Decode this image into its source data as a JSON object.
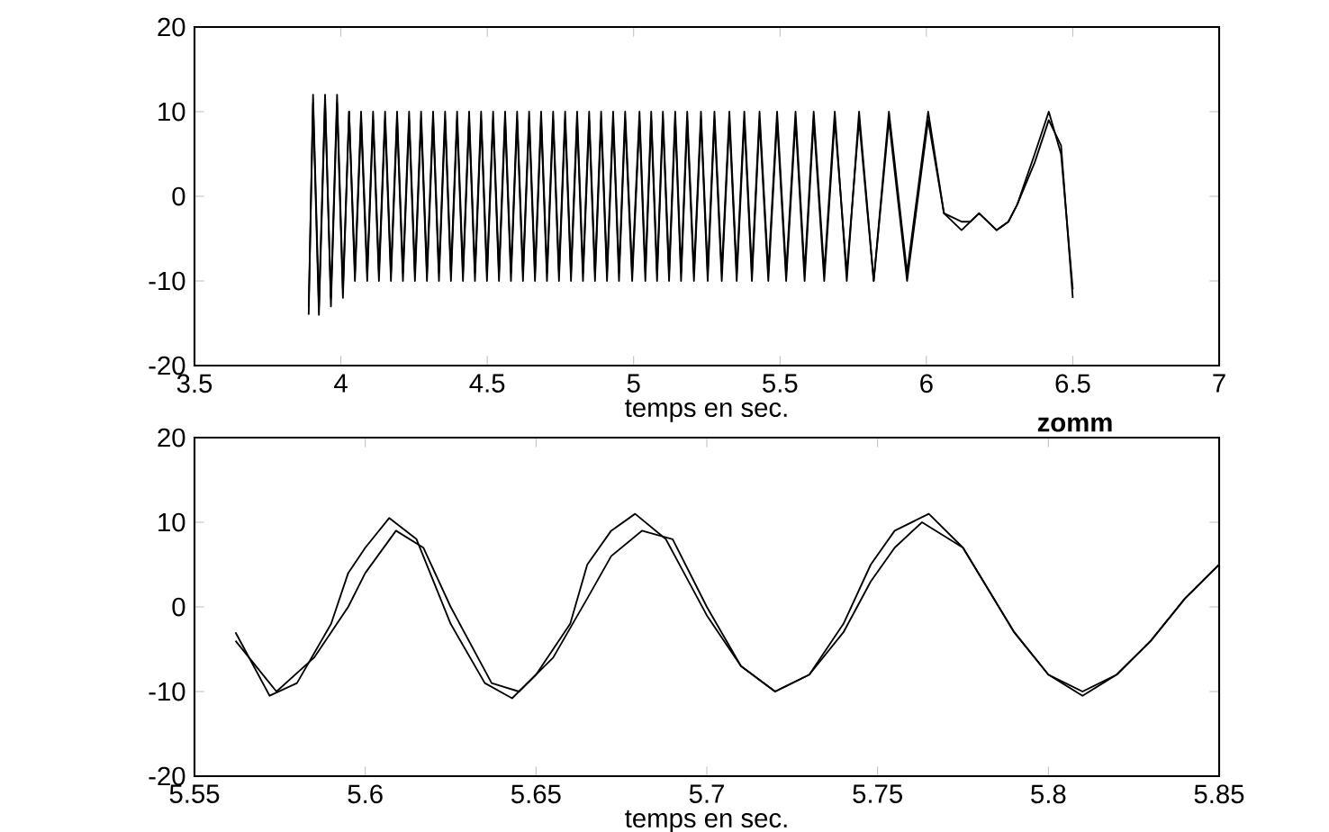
{
  "chart_data": [
    {
      "type": "line",
      "xlabel": "temps en sec.",
      "annotations": [
        "zomm"
      ],
      "xlim": [
        3.5,
        7
      ],
      "ylim": [
        -20,
        20
      ],
      "xticks": [
        3.5,
        4,
        4.5,
        5,
        5.5,
        6,
        6.5,
        7
      ],
      "yticks": [
        -20,
        -10,
        0,
        10,
        20
      ],
      "marker": "none",
      "line_style": "solid",
      "x": [
        3.89,
        3.905,
        3.925,
        3.946,
        3.966,
        3.987,
        4.007,
        4.028,
        4.048,
        4.069,
        4.09,
        4.11,
        4.13,
        4.151,
        4.171,
        4.192,
        4.212,
        4.233,
        4.253,
        4.274,
        4.294,
        4.315,
        4.335,
        4.356,
        4.376,
        4.397,
        4.417,
        4.438,
        4.458,
        4.479,
        4.499,
        4.52,
        4.54,
        4.561,
        4.581,
        4.602,
        4.622,
        4.643,
        4.663,
        4.684,
        4.704,
        4.725,
        4.745,
        4.766,
        4.786,
        4.807,
        4.827,
        4.848,
        4.868,
        4.889,
        4.909,
        4.93,
        4.95,
        4.971,
        4.995,
        5.02,
        5.04,
        5.06,
        5.08,
        5.1,
        5.121,
        5.142,
        5.162,
        5.183,
        5.206,
        5.23,
        5.253,
        5.276,
        5.301,
        5.327,
        5.352,
        5.378,
        5.404,
        5.43,
        5.46,
        5.49,
        5.521,
        5.553,
        5.584,
        5.615,
        5.651,
        5.687,
        5.728,
        5.77,
        5.82,
        5.872,
        5.934,
        6.006,
        6.06,
        6.12,
        6.15,
        6.18,
        6.21,
        6.24,
        6.28,
        6.31,
        6.37,
        6.418,
        6.46,
        6.5
      ],
      "series": [
        {
          "color": "#000000",
          "values": [
            -14,
            12,
            -13,
            12,
            -13,
            11,
            -12,
            10,
            -9,
            10,
            -9,
            10,
            -9,
            10,
            -9,
            10,
            -9,
            10,
            -9,
            10,
            -9,
            10,
            -9,
            10,
            -9,
            10,
            -9,
            10,
            -9,
            10,
            -9,
            10,
            -9,
            10,
            -9,
            10,
            -9,
            10,
            -9,
            10,
            -9,
            10,
            -9,
            10,
            -9,
            10,
            -9,
            10,
            -9,
            10,
            -9,
            10,
            -9,
            10,
            -9,
            10,
            -9,
            10,
            -9,
            10,
            -9,
            10,
            -9,
            10,
            -9,
            10,
            -9,
            10,
            -9,
            10,
            -9,
            10,
            -9,
            10,
            -9,
            10,
            -9,
            10,
            -9,
            10,
            -9,
            10,
            -10,
            10,
            -10,
            10,
            -9,
            10,
            -2,
            -3,
            -3,
            -2,
            -3,
            -4,
            -3,
            -1,
            5,
            10,
            5,
            -11
          ]
        },
        {
          "color": "#000000",
          "values": [
            -13,
            11,
            -14,
            11,
            -12,
            12,
            -11,
            10,
            -10,
            9,
            -10,
            9,
            -10,
            9,
            -10,
            9,
            -10,
            9,
            -10,
            9,
            -10,
            9,
            -10,
            9,
            -10,
            9,
            -10,
            9,
            -10,
            9,
            -10,
            9,
            -10,
            9,
            -10,
            9,
            -10,
            9,
            -10,
            9,
            -10,
            9,
            -10,
            9,
            -10,
            9,
            -10,
            9,
            -10,
            9,
            -10,
            9,
            -10,
            9,
            -10,
            9,
            -10,
            9,
            -10,
            9,
            -10,
            9,
            -10,
            9,
            -10,
            9,
            -10,
            9,
            -10,
            9,
            -10,
            9,
            -10,
            9,
            -10,
            9,
            -10,
            9,
            -10,
            9,
            -10,
            9,
            -9,
            9,
            -10,
            9,
            -10,
            9,
            -2,
            -4,
            -3,
            -2,
            -3,
            -4,
            -3,
            -1,
            4,
            9,
            6,
            -12
          ]
        }
      ]
    },
    {
      "type": "line",
      "xlabel": "temps en sec.",
      "xlim": [
        5.55,
        5.85
      ],
      "ylim": [
        -20,
        20
      ],
      "xticks": [
        5.55,
        5.6,
        5.65,
        5.7,
        5.75,
        5.8,
        5.85
      ],
      "yticks": [
        -20,
        -10,
        0,
        10,
        20
      ],
      "marker": "none",
      "line_style": "solid",
      "series": [
        {
          "color": "#000000",
          "x": [
            5.562,
            5.572,
            5.58,
            5.59,
            5.595,
            5.6,
            5.607,
            5.615,
            5.625,
            5.635,
            5.643,
            5.65,
            5.66,
            5.665,
            5.672,
            5.679,
            5.688,
            5.7,
            5.71,
            5.72,
            5.73,
            5.74,
            5.748,
            5.755,
            5.765,
            5.775,
            5.79,
            5.8,
            5.81,
            5.82,
            5.83,
            5.84,
            5.85
          ],
          "values": [
            -3,
            -10.5,
            -9,
            -2,
            4,
            7,
            10.5,
            8,
            -2,
            -9,
            -10.8,
            -8,
            -2,
            5,
            9,
            11,
            8,
            -1,
            -7,
            -10,
            -8,
            -2,
            5,
            9,
            11,
            7,
            -3,
            -8,
            -10.5,
            -8,
            -4,
            1,
            5
          ]
        },
        {
          "color": "#000000",
          "x": [
            5.562,
            5.574,
            5.585,
            5.595,
            5.6,
            5.609,
            5.617,
            5.625,
            5.637,
            5.645,
            5.655,
            5.665,
            5.672,
            5.681,
            5.69,
            5.7,
            5.71,
            5.72,
            5.73,
            5.74,
            5.748,
            5.755,
            5.763,
            5.775,
            5.79,
            5.8,
            5.81,
            5.82,
            5.83,
            5.84,
            5.85
          ],
          "values": [
            -4,
            -10,
            -6,
            0,
            4,
            9,
            7,
            0,
            -9,
            -10,
            -6,
            1,
            6,
            9,
            8,
            0,
            -7,
            -10,
            -8,
            -3,
            3,
            7,
            10,
            7,
            -3,
            -8,
            -10,
            -8,
            -4,
            1,
            5
          ]
        }
      ]
    }
  ]
}
